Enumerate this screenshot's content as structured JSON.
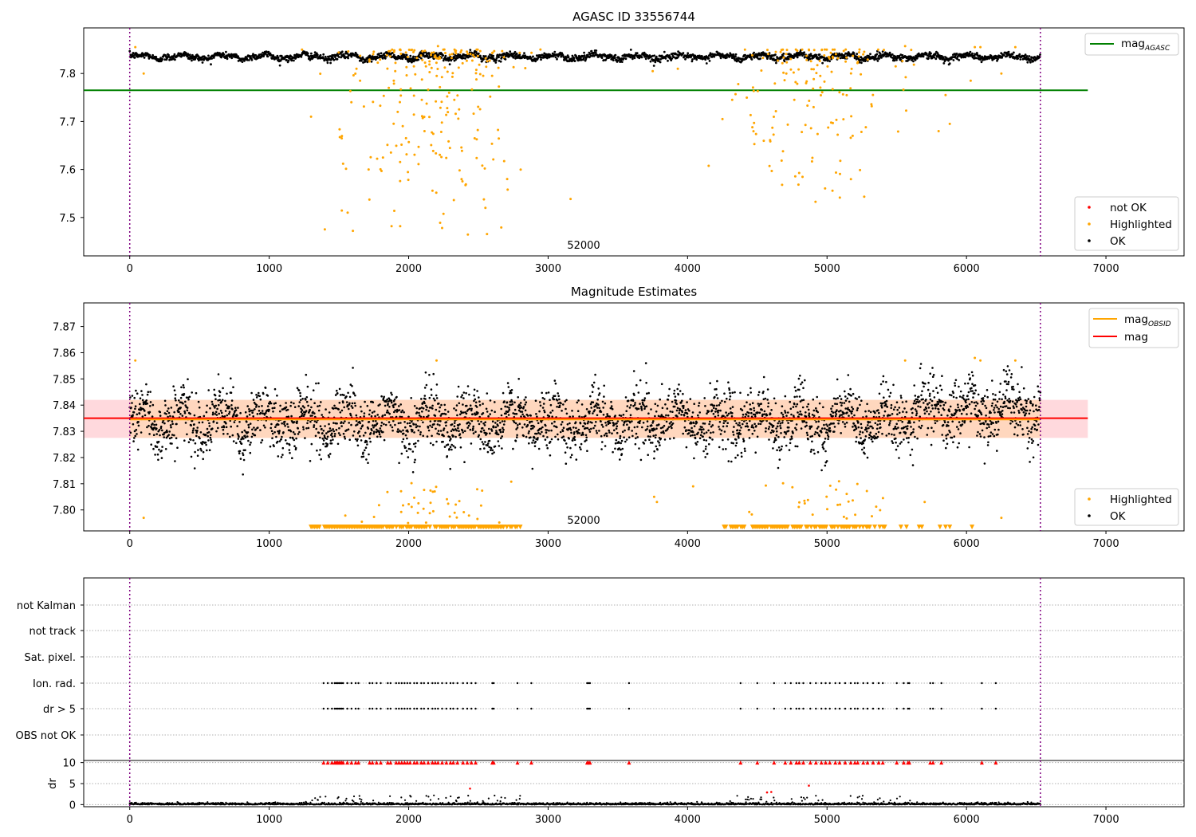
{
  "chart_data": [
    {
      "type": "scatter",
      "title": "AGASC ID 33556744",
      "xlim": [
        -330,
        7560
      ],
      "ylim": [
        7.42,
        7.895
      ],
      "xticks": [
        0,
        1000,
        2000,
        3000,
        4000,
        5000,
        6000,
        7000
      ],
      "yticks": [
        7.5,
        7.6,
        7.7,
        7.8
      ],
      "mag_agasc": 7.765,
      "vlines": [
        0,
        6530
      ],
      "annotation": "52000",
      "legend_top": [
        {
          "label": "mag",
          "sub": "AGASC",
          "color": "#008000"
        }
      ],
      "legend_bottom": [
        {
          "label": "not OK",
          "color": "#ff0000"
        },
        {
          "label": "Highlighted",
          "color": "#ffa500"
        },
        {
          "label": "OK",
          "color": "#000000"
        }
      ],
      "ok_band": {
        "x_range": [
          0,
          6530
        ],
        "center": 7.835,
        "amplitude": 0.008,
        "noise": 0.005
      },
      "highlighted_clusters": [
        {
          "x_center": 2200,
          "x_sigma": 300,
          "y_min": 7.46,
          "y_max": 7.85,
          "n": 240
        },
        {
          "x_center": 4900,
          "x_sigma": 280,
          "y_min": 7.53,
          "y_max": 7.85,
          "n": 160
        }
      ]
    },
    {
      "type": "scatter",
      "title": "Magnitude Estimates",
      "xlim": [
        -330,
        7560
      ],
      "ylim": [
        7.792,
        7.879
      ],
      "xticks": [
        0,
        1000,
        2000,
        3000,
        4000,
        5000,
        6000,
        7000
      ],
      "yticks": [
        7.8,
        7.81,
        7.82,
        7.83,
        7.84,
        7.85,
        7.86,
        7.87
      ],
      "mag": 7.835,
      "mag_band": [
        7.8275,
        7.842
      ],
      "vlines": [
        0,
        6530
      ],
      "annotation": "52000",
      "legend_top": [
        {
          "label": "mag",
          "sub": "OBSID",
          "color": "#ffa500"
        },
        {
          "label": "mag",
          "sub": "",
          "color": "#ff0000"
        }
      ],
      "legend_bottom": [
        {
          "label": "Highlighted",
          "color": "#ffa500"
        },
        {
          "label": "OK",
          "color": "#000000"
        }
      ]
    },
    {
      "type": "scatter",
      "title": "",
      "xlim": [
        -330,
        7560
      ],
      "xticks": [
        0,
        1000,
        2000,
        3000,
        4000,
        5000,
        6000,
        7000
      ],
      "flags": [
        "not Kalman",
        "not track",
        "Sat. pixel.",
        "Ion. rad.",
        "dr > 5",
        "OBS not OK"
      ],
      "dr_ylabel": "dr",
      "dr_yticks": [
        0,
        5,
        10
      ],
      "vlines": [
        0,
        6530
      ],
      "flag_x_values": [
        1390,
        1420,
        1450,
        1470,
        1480,
        1490,
        1500,
        1510,
        1520,
        1530,
        1560,
        1590,
        1620,
        1640,
        1720,
        1740,
        1770,
        1800,
        1850,
        1870,
        1910,
        1930,
        1950,
        1970,
        1990,
        2010,
        2040,
        2060,
        2090,
        2110,
        2140,
        2170,
        2190,
        2210,
        2240,
        2270,
        2300,
        2320,
        2350,
        2390,
        2420,
        2450,
        2480,
        2600,
        2610,
        2780,
        2880,
        3280,
        3290,
        3300,
        3580,
        4380,
        4500,
        4620,
        4700,
        4740,
        4780,
        4800,
        4830,
        4880,
        4920,
        4960,
        4990,
        5020,
        5060,
        5090,
        5130,
        5170,
        5200,
        5220,
        5260,
        5290,
        5330,
        5370,
        5400,
        5500,
        5550,
        5580,
        5590,
        5740,
        5760,
        5820,
        6110,
        6210
      ]
    }
  ]
}
